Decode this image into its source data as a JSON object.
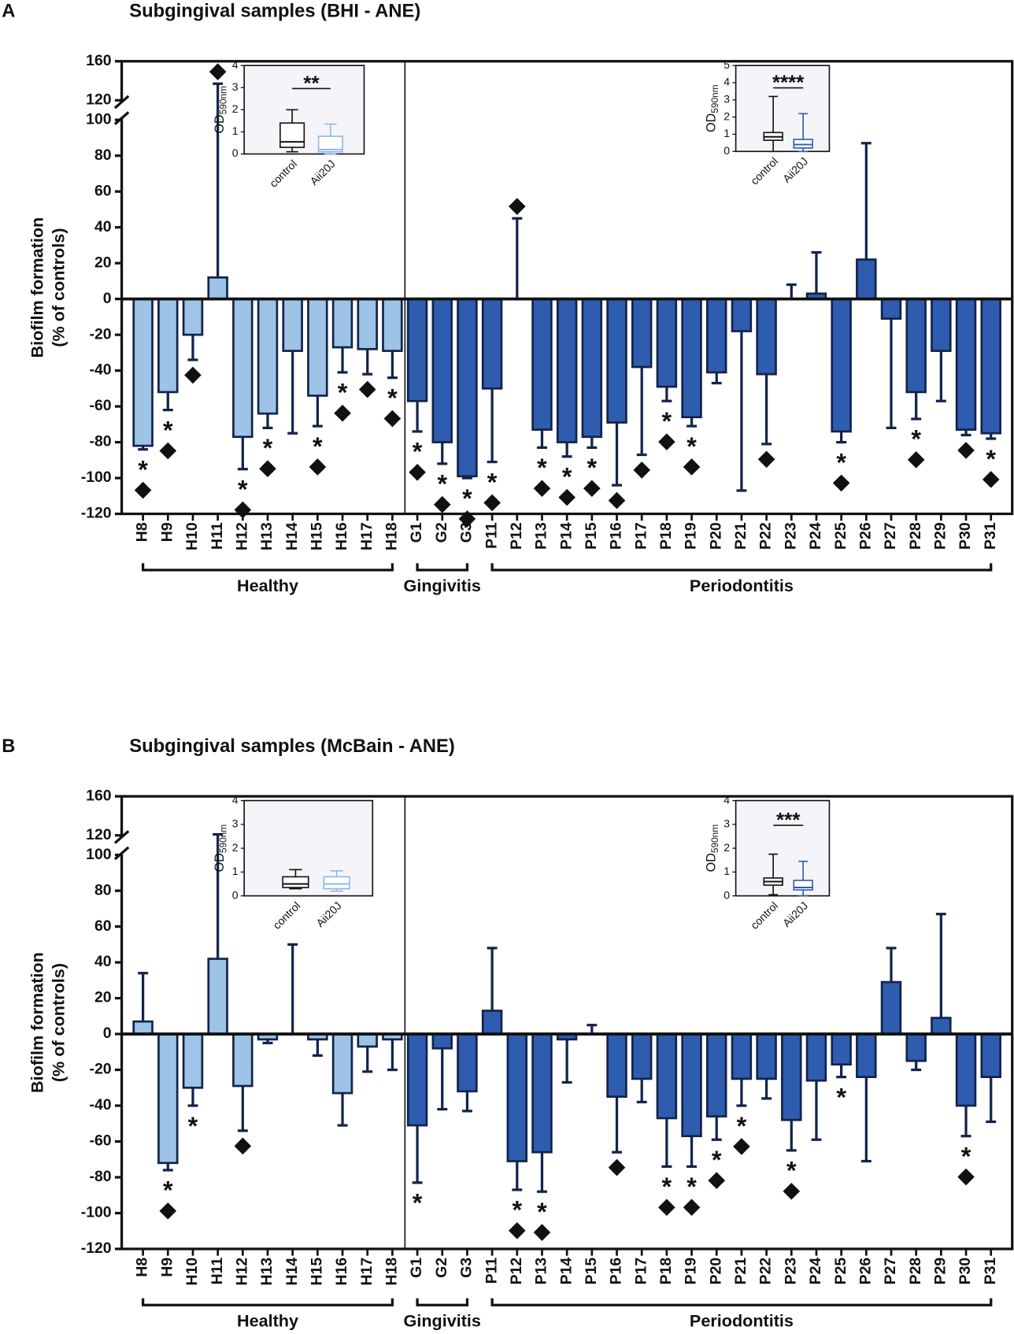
{
  "chart_data": [
    {
      "type": "bar",
      "panel_label": "A",
      "title": "Subgingival samples (BHI - ANE)",
      "y_label": [
        "Biofilm formation",
        "(% of controls)"
      ],
      "ylim": [
        -120,
        160
      ],
      "yticks": [
        -120,
        -100,
        -80,
        -60,
        -40,
        -20,
        0,
        20,
        40,
        60,
        80,
        100,
        120,
        160
      ],
      "axis_break": [
        100,
        120
      ],
      "categories": [
        "H8",
        "H9",
        "H10",
        "H11",
        "H12",
        "H13",
        "H14",
        "H15",
        "H16",
        "H17",
        "H18",
        "G1",
        "G2",
        "G3",
        "P11",
        "P12",
        "P13",
        "P14",
        "P15",
        "P16",
        "P17",
        "P18",
        "P19",
        "P20",
        "P21",
        "P22",
        "P23",
        "P24",
        "P25",
        "P26",
        "P27",
        "P28",
        "P29",
        "P30",
        "P31"
      ],
      "values": [
        -82,
        -52,
        -20,
        12,
        -77,
        -64,
        -29,
        -54,
        -27,
        -28,
        -29,
        -57,
        -80,
        -99,
        -50,
        0,
        -73,
        -80,
        -77,
        -69,
        -38,
        -49,
        -66,
        -41,
        -18,
        -42,
        0,
        3,
        -74,
        22,
        -11,
        -52,
        -29,
        -73,
        -75
      ],
      "errors": [
        2,
        10,
        14,
        125,
        18,
        8,
        46,
        17,
        14,
        14,
        15,
        17,
        12,
        1,
        41,
        45,
        10,
        8,
        6,
        35,
        49,
        8,
        5,
        6,
        89,
        39,
        8,
        23,
        6,
        65,
        61,
        15,
        28,
        3,
        3
      ],
      "stars": [
        "*",
        "*",
        null,
        null,
        "*",
        "*",
        null,
        "*",
        "*",
        null,
        "*",
        "*",
        "*",
        "*",
        "*",
        null,
        "*",
        "*",
        "*",
        null,
        null,
        "*",
        "*",
        null,
        null,
        null,
        null,
        null,
        "*",
        null,
        null,
        "*",
        null,
        null,
        "*"
      ],
      "diamonds": [
        true,
        true,
        true,
        true,
        true,
        true,
        false,
        true,
        true,
        true,
        true,
        true,
        true,
        true,
        true,
        true,
        true,
        true,
        true,
        true,
        true,
        true,
        true,
        false,
        false,
        true,
        false,
        false,
        true,
        false,
        false,
        true,
        false,
        true,
        true
      ],
      "groups": [
        {
          "label": "Healthy",
          "color": "#9dc3e6"
        },
        {
          "label": "Gingivitis",
          "color": "#2e5caf"
        },
        {
          "label": "Periodontitis",
          "color": "#2e5caf"
        }
      ],
      "insets": [
        {
          "type": "box",
          "y_label": "OD",
          "y_label_sub": "590nm",
          "ylim": [
            0,
            4
          ],
          "yticks": [
            0,
            1,
            2,
            3,
            4
          ],
          "significance": "**",
          "boxes": [
            {
              "name": "control",
              "color": "#111111",
              "whisker_low": 0.1,
              "q1": 0.3,
              "median": 0.55,
              "q3": 1.4,
              "whisker_high": 2.0
            },
            {
              "name": "Aii20J",
              "color": "#8db8e8",
              "whisker_low": 0,
              "q1": 0.1,
              "median": 0.2,
              "q3": 0.8,
              "whisker_high": 1.35
            }
          ]
        },
        {
          "type": "box",
          "y_label": "OD",
          "y_label_sub": "590nm",
          "ylim": [
            0,
            5
          ],
          "yticks": [
            0,
            1,
            2,
            3,
            4,
            5
          ],
          "significance": "****",
          "boxes": [
            {
              "name": "control",
              "color": "#111111",
              "whisker_low": 0,
              "q1": 0.65,
              "median": 0.85,
              "q3": 1.1,
              "whisker_high": 3.2
            },
            {
              "name": "Aii20J",
              "color": "#2e5caf",
              "whisker_low": 0,
              "q1": 0.2,
              "median": 0.4,
              "q3": 0.7,
              "whisker_high": 2.2
            }
          ]
        }
      ]
    },
    {
      "type": "bar",
      "panel_label": "B",
      "title": "Subgingival samples (McBain - ANE)",
      "y_label": [
        "Biofilm formation",
        "(% of controls)"
      ],
      "ylim": [
        -120,
        160
      ],
      "yticks": [
        -120,
        -100,
        -80,
        -60,
        -40,
        -20,
        0,
        20,
        40,
        60,
        80,
        100,
        120,
        160
      ],
      "axis_break": [
        100,
        120
      ],
      "categories": [
        "H8",
        "H9",
        "H10",
        "H11",
        "H12",
        "H13",
        "H14",
        "H15",
        "H16",
        "H17",
        "H18",
        "G1",
        "G2",
        "G3",
        "P11",
        "P12",
        "P13",
        "P14",
        "P15",
        "P16",
        "P17",
        "P18",
        "P19",
        "P20",
        "P21",
        "P22",
        "P23",
        "P24",
        "P25",
        "P26",
        "P27",
        "P28",
        "P29",
        "P30",
        "P31"
      ],
      "values": [
        7,
        -72,
        -30,
        42,
        -29,
        -3,
        0,
        -3,
        -33,
        -7,
        -3,
        -51,
        -8,
        -32,
        13,
        -71,
        -66,
        -3,
        0,
        -35,
        -25,
        -47,
        -57,
        -46,
        -25,
        -25,
        -48,
        -26,
        -17,
        -24,
        29,
        -15,
        9,
        -40,
        -24
      ],
      "errors": [
        27,
        4,
        10,
        79,
        25,
        2,
        50,
        9,
        18,
        14,
        17,
        32,
        34,
        11,
        35,
        16,
        22,
        24,
        5,
        31,
        13,
        27,
        17,
        13,
        15,
        11,
        17,
        33,
        7,
        47,
        19,
        5,
        58,
        17,
        25
      ],
      "stars": [
        null,
        "*",
        "*",
        null,
        null,
        null,
        null,
        null,
        null,
        null,
        null,
        "*",
        null,
        null,
        null,
        "*",
        "*",
        null,
        null,
        null,
        null,
        "*",
        "*",
        "*",
        "*",
        null,
        "*",
        null,
        "*",
        null,
        null,
        null,
        null,
        "*",
        null
      ],
      "diamonds": [
        false,
        true,
        false,
        false,
        true,
        false,
        false,
        false,
        false,
        false,
        false,
        false,
        false,
        false,
        false,
        true,
        true,
        false,
        false,
        true,
        false,
        true,
        true,
        true,
        true,
        false,
        true,
        false,
        false,
        false,
        false,
        false,
        false,
        true,
        false
      ],
      "groups": [
        {
          "label": "Healthy",
          "color": "#9dc3e6"
        },
        {
          "label": "Gingivitis",
          "color": "#2e5caf"
        },
        {
          "label": "Periodontitis",
          "color": "#2e5caf"
        }
      ],
      "insets": [
        {
          "type": "box",
          "y_label": "OD",
          "y_label_sub": "590nm",
          "ylim": [
            0,
            4
          ],
          "yticks": [
            0,
            1,
            2,
            3,
            4
          ],
          "boxes": [
            {
              "name": "control",
              "color": "#111111",
              "whisker_low": 0.3,
              "q1": 0.35,
              "median": 0.5,
              "q3": 0.8,
              "whisker_high": 1.1
            },
            {
              "name": "Aii20J",
              "color": "#8db8e8",
              "whisker_low": 0.2,
              "q1": 0.3,
              "median": 0.5,
              "q3": 0.8,
              "whisker_high": 1.05
            }
          ]
        },
        {
          "type": "box",
          "y_label": "OD",
          "y_label_sub": "590nm",
          "ylim": [
            0,
            4
          ],
          "yticks": [
            0,
            1,
            2,
            3,
            4
          ],
          "significance": "***",
          "boxes": [
            {
              "name": "control",
              "color": "#111111",
              "whisker_low": 0.05,
              "q1": 0.45,
              "median": 0.6,
              "q3": 0.75,
              "whisker_high": 1.75
            },
            {
              "name": "Aii20J",
              "color": "#2e5caf",
              "whisker_low": 0,
              "q1": 0.25,
              "median": 0.35,
              "q3": 0.65,
              "whisker_high": 1.45
            }
          ]
        }
      ]
    }
  ]
}
